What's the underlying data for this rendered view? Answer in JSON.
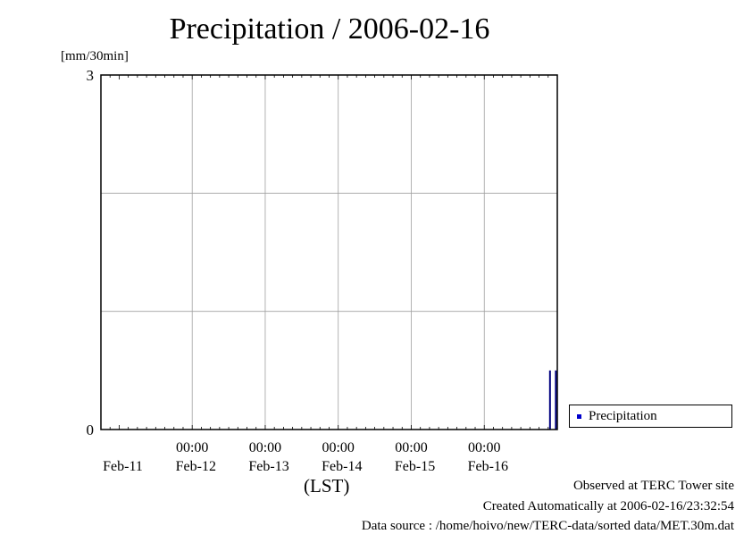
{
  "title": "Precipitation / 2006-02-16",
  "y_unit": "[mm/30min]",
  "x_axis_name": "(LST)",
  "legend_label": "Precipitation",
  "footer": {
    "observed": "Observed at TERC Tower site",
    "created": "Created Automatically at 2006-02-16/23:32:54",
    "source": "Data source : /home/hoivo/new/TERC-data/sorted  data/MET.30m.dat"
  },
  "chart_data": {
    "type": "bar",
    "title": "Precipitation / 2006-02-16",
    "ylabel": "[mm/30min]",
    "xlabel": "(LST)",
    "ylim": [
      0,
      3
    ],
    "y_ticks": [
      0,
      3
    ],
    "y_gridlines": [
      0,
      1,
      2,
      3
    ],
    "x_tick_time_labels": [
      "00:00",
      "00:00",
      "00:00",
      "00:00",
      "00:00"
    ],
    "x_date_labels": [
      "Feb-11",
      "Feb-12",
      "Feb-13",
      "Feb-14",
      "Feb-15",
      "Feb-16"
    ],
    "xlim_days": [
      -0.25,
      6.0
    ],
    "grid": true,
    "legend_position": "right",
    "series": [
      {
        "name": "Precipitation",
        "color": "#000080",
        "points": [
          {
            "day": 5.9,
            "value": 0.5
          },
          {
            "day": 5.98,
            "value": 0.5
          }
        ]
      }
    ]
  }
}
